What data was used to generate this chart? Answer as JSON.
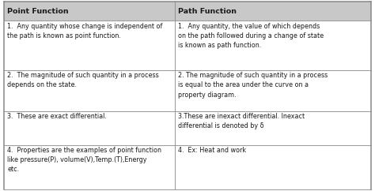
{
  "col1_header": "Point Function",
  "col2_header": "Path Function",
  "rows": [
    {
      "col1": "1.  Any quantity whose change is independent of\nthe path is known as point function.",
      "col2": "1.  Any quantity, the value of which depends\non the path followed during a change of state\nis known as path function."
    },
    {
      "col1": "2.  The magnitude of such quantity in a process\ndepends on the state.",
      "col2": "2. The magnitude of such quantity in a process\nis equal to the area under the curve on a\nproperty diagram."
    },
    {
      "col1": "3.  These are exact differential.",
      "col2": "3.These are inexact differential. Inexact\ndifferential is denoted by δ"
    },
    {
      "col1": "4.  Properties are the examples of point function\nlike pressure(P), volume(V),Temp.(T),Energy\netc.",
      "col2": "4.  Ex: Heat and work"
    }
  ],
  "header_bg": "#c8c8c8",
  "cell_bg": "#ffffff",
  "border_color": "#888888",
  "text_color": "#1a1a1a",
  "header_font_size": 6.8,
  "cell_font_size": 5.8,
  "col_split": 0.465,
  "fig_width": 4.74,
  "fig_height": 2.42,
  "dpi": 100
}
